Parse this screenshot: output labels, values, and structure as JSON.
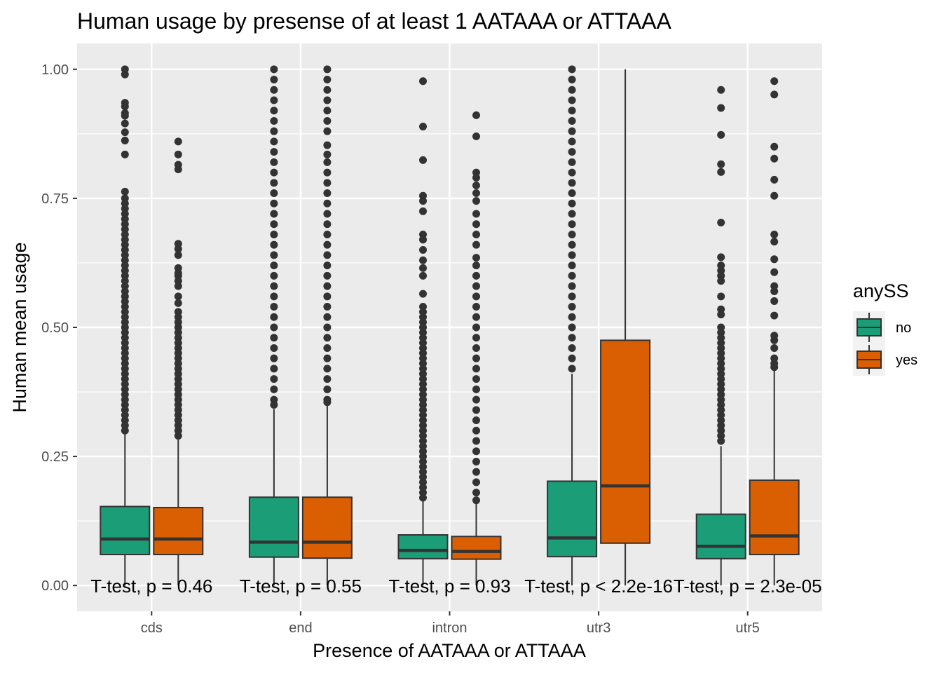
{
  "chart_data": {
    "type": "box",
    "title": "Human usage by presense of at least 1 AATAAA or ATTAAA",
    "xlabel": "Presence of AATAAA or ATTAAA",
    "ylabel": "Human mean usage",
    "ylim": [
      -0.05,
      1.05
    ],
    "yticks": [
      0,
      0.25,
      0.5,
      0.75,
      1.0
    ],
    "ytick_labels": [
      "0.00",
      "0.25",
      "0.50",
      "0.75",
      "1.00"
    ],
    "categories": [
      "cds",
      "end",
      "intron",
      "utr3",
      "utr5"
    ],
    "legend": {
      "title": "anySS",
      "placement": "right",
      "entries": [
        {
          "label": "no",
          "color": "#1b9e77"
        },
        {
          "label": "yes",
          "color": "#d95f02"
        }
      ]
    },
    "grid": true,
    "panel_background": "#ebebeb",
    "series": [
      {
        "name": "no",
        "color": "#1b9e77",
        "boxes": [
          {
            "category": "cds",
            "min": 0.0,
            "q1": 0.06,
            "median": 0.09,
            "q3": 0.153,
            "max": 0.293,
            "outliers": [
              1.0,
              0.99,
              0.935,
              0.928,
              0.915,
              0.91,
              0.895,
              0.878,
              0.862,
              0.835,
              0.763,
              0.75,
              0.74,
              0.73,
              0.72,
              0.71,
              0.7,
              0.69,
              0.68,
              0.67,
              0.66,
              0.65,
              0.64,
              0.63,
              0.62,
              0.61,
              0.6,
              0.59,
              0.58,
              0.57,
              0.56,
              0.55,
              0.54,
              0.53,
              0.52,
              0.51,
              0.5,
              0.49,
              0.48,
              0.47,
              0.46,
              0.45,
              0.44,
              0.43,
              0.42,
              0.41,
              0.4,
              0.39,
              0.38,
              0.37,
              0.36,
              0.35,
              0.34,
              0.33,
              0.32,
              0.31,
              0.3
            ]
          },
          {
            "category": "end",
            "min": 0.0,
            "q1": 0.055,
            "median": 0.084,
            "q3": 0.171,
            "max": 0.342,
            "outliers": [
              1.0,
              0.98,
              0.96,
              0.94,
              0.92,
              0.9,
              0.88,
              0.86,
              0.84,
              0.82,
              0.8,
              0.78,
              0.76,
              0.74,
              0.72,
              0.7,
              0.68,
              0.66,
              0.64,
              0.62,
              0.6,
              0.58,
              0.56,
              0.54,
              0.52,
              0.5,
              0.48,
              0.46,
              0.44,
              0.42,
              0.4,
              0.38,
              0.36,
              0.35
            ]
          },
          {
            "category": "intron",
            "min": 0.0,
            "q1": 0.052,
            "median": 0.068,
            "q3": 0.098,
            "max": 0.165,
            "outliers": [
              0.977,
              0.889,
              0.824,
              0.755,
              0.745,
              0.725,
              0.68,
              0.67,
              0.65,
              0.63,
              0.615,
              0.6,
              0.565,
              0.54,
              0.53,
              0.52,
              0.51,
              0.5,
              0.49,
              0.48,
              0.47,
              0.46,
              0.45,
              0.44,
              0.43,
              0.42,
              0.41,
              0.4,
              0.39,
              0.38,
              0.37,
              0.36,
              0.35,
              0.34,
              0.33,
              0.32,
              0.31,
              0.3,
              0.29,
              0.28,
              0.27,
              0.26,
              0.25,
              0.24,
              0.23,
              0.22,
              0.21,
              0.2,
              0.19,
              0.18,
              0.17
            ]
          },
          {
            "category": "utr3",
            "min": 0.0,
            "q1": 0.056,
            "median": 0.092,
            "q3": 0.202,
            "max": 0.41,
            "outliers": [
              1.0,
              0.98,
              0.96,
              0.94,
              0.92,
              0.9,
              0.88,
              0.86,
              0.84,
              0.82,
              0.8,
              0.78,
              0.76,
              0.74,
              0.72,
              0.7,
              0.68,
              0.66,
              0.64,
              0.62,
              0.6,
              0.58,
              0.56,
              0.54,
              0.52,
              0.5,
              0.48,
              0.46,
              0.44,
              0.42
            ]
          },
          {
            "category": "utr5",
            "min": 0.0,
            "q1": 0.052,
            "median": 0.076,
            "q3": 0.138,
            "max": 0.27,
            "outliers": [
              0.96,
              0.925,
              0.873,
              0.816,
              0.801,
              0.703,
              0.636,
              0.62,
              0.61,
              0.6,
              0.59,
              0.56,
              0.535,
              0.525,
              0.5,
              0.49,
              0.48,
              0.47,
              0.46,
              0.45,
              0.44,
              0.43,
              0.42,
              0.41,
              0.4,
              0.39,
              0.38,
              0.37,
              0.36,
              0.35,
              0.34,
              0.33,
              0.32,
              0.31,
              0.3,
              0.29,
              0.28
            ]
          }
        ]
      },
      {
        "name": "yes",
        "color": "#d95f02",
        "boxes": [
          {
            "category": "cds",
            "min": 0.0,
            "q1": 0.06,
            "median": 0.09,
            "q3": 0.151,
            "max": 0.287,
            "outliers": [
              0.86,
              0.835,
              0.815,
              0.806,
              0.662,
              0.652,
              0.64,
              0.615,
              0.605,
              0.6,
              0.59,
              0.58,
              0.56,
              0.547,
              0.53,
              0.52,
              0.51,
              0.5,
              0.49,
              0.48,
              0.47,
              0.46,
              0.45,
              0.44,
              0.43,
              0.42,
              0.41,
              0.4,
              0.39,
              0.38,
              0.37,
              0.36,
              0.35,
              0.34,
              0.33,
              0.32,
              0.31,
              0.3,
              0.29
            ]
          },
          {
            "category": "end",
            "min": 0.0,
            "q1": 0.053,
            "median": 0.084,
            "q3": 0.171,
            "max": 0.349,
            "outliers": [
              1.0,
              0.98,
              0.96,
              0.94,
              0.92,
              0.9,
              0.88,
              0.853,
              0.835,
              0.82,
              0.8,
              0.78,
              0.76,
              0.74,
              0.72,
              0.7,
              0.68,
              0.66,
              0.64,
              0.62,
              0.6,
              0.58,
              0.56,
              0.54,
              0.52,
              0.5,
              0.48,
              0.46,
              0.44,
              0.42,
              0.4,
              0.38,
              0.36,
              0.355
            ]
          },
          {
            "category": "intron",
            "min": 0.0,
            "q1": 0.051,
            "median": 0.066,
            "q3": 0.095,
            "max": 0.162,
            "outliers": [
              0.911,
              0.87,
              0.8,
              0.79,
              0.775,
              0.76,
              0.745,
              0.72,
              0.7,
              0.68,
              0.66,
              0.635,
              0.62,
              0.6,
              0.58,
              0.56,
              0.54,
              0.52,
              0.5,
              0.48,
              0.46,
              0.44,
              0.42,
              0.4,
              0.38,
              0.36,
              0.34,
              0.32,
              0.3,
              0.28,
              0.26,
              0.24,
              0.22,
              0.2,
              0.18,
              0.165
            ]
          },
          {
            "category": "utr3",
            "min": 0.0,
            "q1": 0.082,
            "median": 0.193,
            "q3": 0.475,
            "max": 1.0,
            "outliers": []
          },
          {
            "category": "utr5",
            "min": 0.0,
            "q1": 0.06,
            "median": 0.096,
            "q3": 0.204,
            "max": 0.42,
            "outliers": [
              0.977,
              0.951,
              0.85,
              0.827,
              0.786,
              0.755,
              0.68,
              0.666,
              0.632,
              0.607,
              0.58,
              0.57,
              0.551,
              0.523,
              0.484,
              0.475,
              0.46,
              0.44,
              0.43,
              0.423
            ]
          }
        ]
      }
    ],
    "annotations": [
      {
        "category": "cds",
        "text": "T-test, p = 0.46",
        "y": 0.0
      },
      {
        "category": "end",
        "text": "T-test, p = 0.55",
        "y": 0.0
      },
      {
        "category": "intron",
        "text": "T-test, p = 0.93",
        "y": 0.0
      },
      {
        "category": "utr3",
        "text": "T-test, p < 2.2e-16",
        "y": 0.0
      },
      {
        "category": "utr5",
        "text": "T-test, p = 2.3e-05",
        "y": 0.0
      }
    ]
  }
}
